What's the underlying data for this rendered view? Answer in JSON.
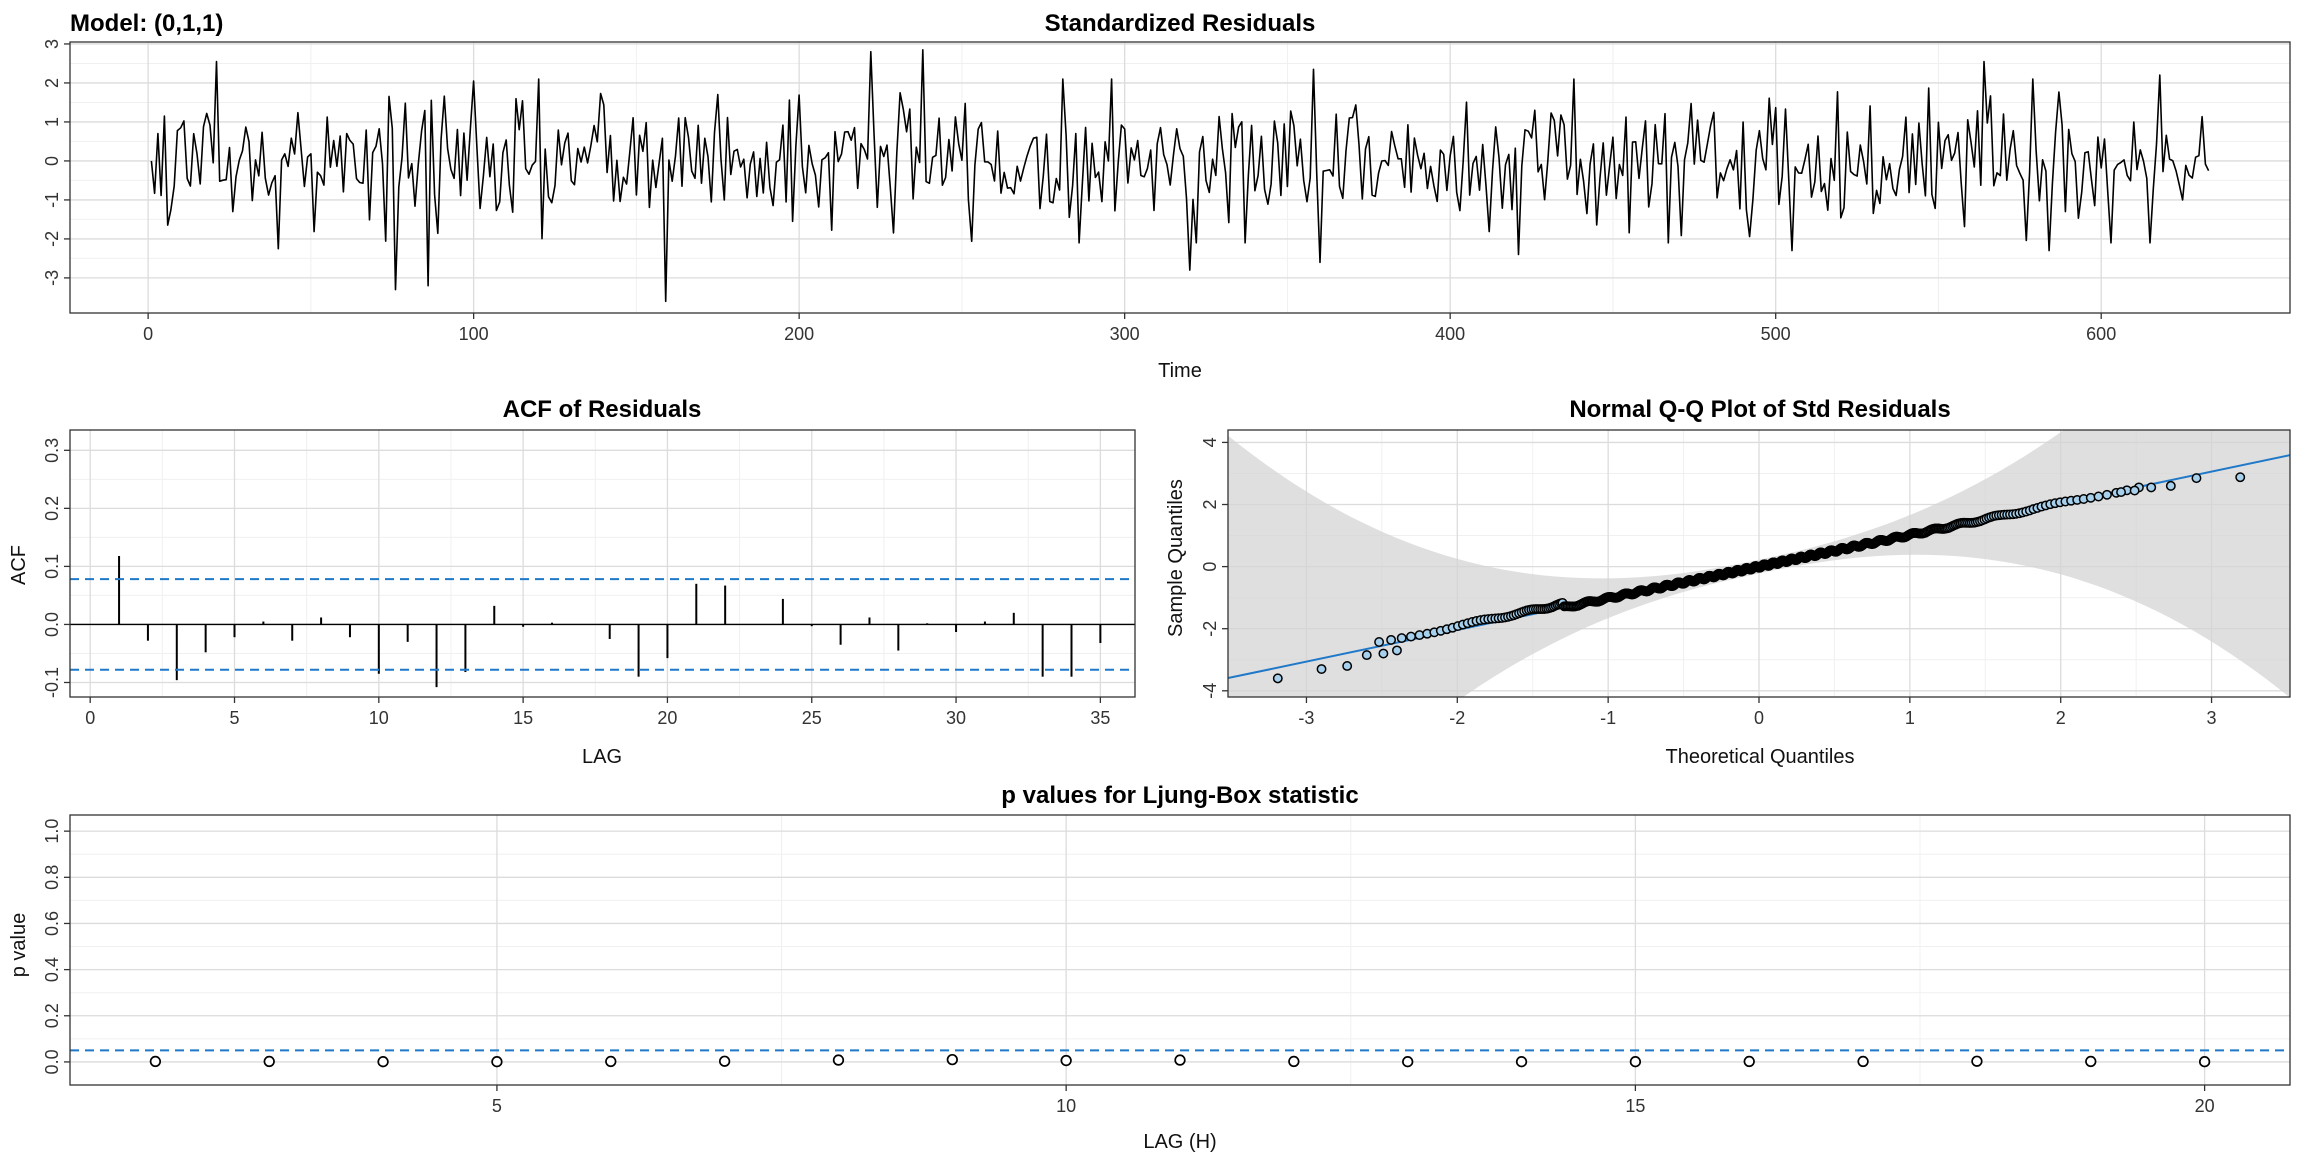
{
  "model_label": "Model: (0,1,1)",
  "chart_data": [
    {
      "type": "line",
      "title": "Standardized Residuals",
      "xlabel": "Time",
      "ylabel": "",
      "xlim": [
        -24,
        658
      ],
      "ylim": [
        -3.9,
        3.05
      ],
      "x_ticks": [
        0,
        100,
        200,
        300,
        400,
        500,
        600
      ],
      "y_ticks": [
        -3,
        -2,
        -1,
        0,
        1,
        2,
        3
      ],
      "n": 633,
      "series_color": "#000000",
      "grid": true,
      "key_values": [
        {
          "x": 1,
          "y": 0.0
        },
        {
          "x": 3,
          "y": 0.7
        },
        {
          "x": 5,
          "y": 1.15
        },
        {
          "x": 7,
          "y": -1.25
        },
        {
          "x": 10,
          "y": 0.85
        },
        {
          "x": 21,
          "y": 2.55
        },
        {
          "x": 26,
          "y": -1.3
        },
        {
          "x": 40,
          "y": -2.25
        },
        {
          "x": 76,
          "y": -3.3
        },
        {
          "x": 86,
          "y": -3.2
        },
        {
          "x": 100,
          "y": 2.05
        },
        {
          "x": 159,
          "y": -3.6
        },
        {
          "x": 163,
          "y": 1.1
        },
        {
          "x": 166,
          "y": 0.6
        },
        {
          "x": 175,
          "y": 1.7
        },
        {
          "x": 222,
          "y": 2.8
        },
        {
          "x": 238,
          "y": 2.85
        },
        {
          "x": 320,
          "y": -2.8
        },
        {
          "x": 358,
          "y": 2.35
        },
        {
          "x": 360,
          "y": -2.6
        },
        {
          "x": 421,
          "y": -2.4
        },
        {
          "x": 505,
          "y": -2.3
        },
        {
          "x": 564,
          "y": 2.55
        },
        {
          "x": 570,
          "y": 1.2
        },
        {
          "x": 572,
          "y": 0.3
        },
        {
          "x": 584,
          "y": -2.3
        },
        {
          "x": 589,
          "y": -1.3
        },
        {
          "x": 618,
          "y": 2.2
        },
        {
          "x": 625,
          "y": -1.0
        },
        {
          "x": 633,
          "y": -0.25
        }
      ]
    },
    {
      "type": "bar",
      "title": "ACF of Residuals",
      "xlabel": "LAG",
      "ylabel": "ACF",
      "xlim": [
        -0.7,
        36.2
      ],
      "ylim": [
        -0.125,
        0.335
      ],
      "x_ticks": [
        0,
        5,
        10,
        15,
        20,
        25,
        30,
        35
      ],
      "y_ticks": [
        -0.1,
        0.0,
        0.1,
        0.2,
        0.3
      ],
      "y_tick_labels": [
        "-0.1",
        "0.0",
        "0.1",
        "0.2",
        "0.3"
      ],
      "lags": [
        1,
        2,
        3,
        4,
        5,
        6,
        7,
        8,
        9,
        10,
        11,
        12,
        13,
        14,
        15,
        16,
        17,
        18,
        19,
        20,
        21,
        22,
        23,
        24,
        25,
        26,
        27,
        28,
        29,
        30,
        31,
        32,
        33,
        34,
        35
      ],
      "values": [
        0.118,
        -0.028,
        -0.096,
        -0.048,
        -0.022,
        0.005,
        -0.028,
        0.012,
        -0.022,
        -0.085,
        -0.03,
        -0.108,
        -0.082,
        0.032,
        -0.004,
        0.003,
        0.0,
        -0.025,
        -0.09,
        -0.058,
        0.07,
        0.067,
        0.0,
        0.044,
        -0.003,
        -0.035,
        0.012,
        -0.045,
        0.002,
        -0.013,
        0.005,
        0.02,
        -0.09,
        -0.09,
        -0.032
      ],
      "conf_bound": 0.078,
      "conf_color": "#1f78c8",
      "bar_color": "#000000",
      "grid": true
    },
    {
      "type": "scatter",
      "title": "Normal Q-Q Plot of Std Residuals",
      "xlabel": "Theoretical Quantiles",
      "ylabel": "Sample Quantiles",
      "xlim": [
        -3.52,
        3.52
      ],
      "ylim": [
        -4.2,
        4.4
      ],
      "x_ticks": [
        -3,
        -2,
        -1,
        0,
        1,
        2,
        3
      ],
      "y_ticks": [
        -4,
        -2,
        0,
        2,
        4
      ],
      "y_tick_labels": [
        "-4",
        "-2",
        "0",
        "2",
        "4"
      ],
      "n": 633,
      "reference_line": {
        "slope": 1.02,
        "intercept": 0.0,
        "color": "#1f78c8"
      },
      "band_color": "#d4d4d4",
      "point_stroke": "#000000",
      "point_fill": "#a6d0ec",
      "tail_points": [
        {
          "x": -3.19,
          "y": -3.6
        },
        {
          "x": -2.9,
          "y": -3.3
        },
        {
          "x": -2.73,
          "y": -3.2
        },
        {
          "x": -2.6,
          "y": -2.85
        },
        {
          "x": -2.49,
          "y": -2.8
        },
        {
          "x": -2.4,
          "y": -2.7
        },
        {
          "x": 2.4,
          "y": 2.4
        },
        {
          "x": 2.49,
          "y": 2.45
        },
        {
          "x": 2.6,
          "y": 2.55
        },
        {
          "x": 2.73,
          "y": 2.6
        },
        {
          "x": 2.9,
          "y": 2.85
        },
        {
          "x": 3.19,
          "y": 2.88
        }
      ],
      "grid": true
    },
    {
      "type": "scatter",
      "title": "p values for Ljung-Box statistic",
      "xlabel": "LAG (H)",
      "ylabel": "p value",
      "xlim": [
        1.25,
        20.75
      ],
      "ylim": [
        -0.1,
        1.07
      ],
      "x_ticks": [
        5,
        10,
        15,
        20
      ],
      "y_ticks": [
        0.0,
        0.2,
        0.4,
        0.6,
        0.8,
        1.0
      ],
      "y_tick_labels": [
        "0.0",
        "0.2",
        "0.4",
        "0.6",
        "0.8",
        "1.0"
      ],
      "x": [
        2,
        3,
        4,
        5,
        6,
        7,
        8,
        9,
        10,
        11,
        12,
        13,
        14,
        15,
        16,
        17,
        18,
        19,
        20
      ],
      "values": [
        0.002,
        0.002,
        0.001,
        0.001,
        0.002,
        0.003,
        0.008,
        0.01,
        0.006,
        0.008,
        0.002,
        0.001,
        0.001,
        0.001,
        0.002,
        0.002,
        0.003,
        0.002,
        0.001
      ],
      "threshold": 0.05,
      "threshold_color": "#1f78c8",
      "grid": true
    }
  ]
}
